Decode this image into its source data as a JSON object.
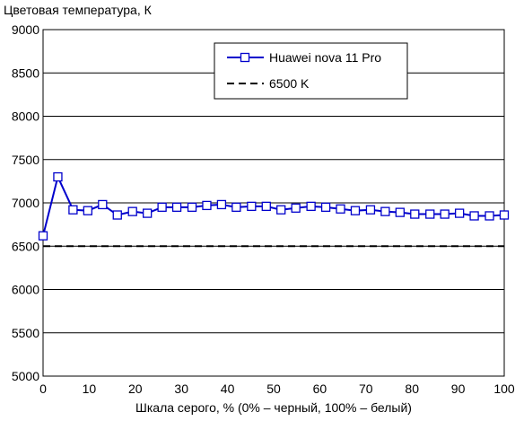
{
  "chart_data": {
    "type": "line",
    "title": "Цветовая температура, К",
    "xlabel": "Шкала серого, % (0% – черный, 100% – белый)",
    "ylabel": "",
    "xlim": [
      0,
      100
    ],
    "ylim": [
      5000,
      9000
    ],
    "x_ticks": [
      "0",
      "10",
      "20",
      "30",
      "40",
      "50",
      "60",
      "70",
      "80",
      "90",
      "100"
    ],
    "y_ticks": [
      "5000",
      "5500",
      "6000",
      "6500",
      "7000",
      "7500",
      "8000",
      "8500",
      "9000"
    ],
    "grid": "horizontal",
    "legend_position": "top-right",
    "series": [
      {
        "name": "Huawei nova 11 Pro",
        "color": "#0000cc",
        "marker": "square-hollow",
        "x": [
          0,
          3.2,
          6.5,
          9.7,
          12.9,
          16.1,
          19.4,
          22.6,
          25.8,
          29.0,
          32.3,
          35.5,
          38.7,
          41.9,
          45.2,
          48.4,
          51.6,
          54.8,
          58.1,
          61.3,
          64.5,
          67.7,
          71.0,
          74.2,
          77.4,
          80.6,
          83.9,
          87.1,
          90.3,
          93.5,
          96.8,
          100
        ],
        "y": [
          6620,
          7300,
          6920,
          6910,
          6980,
          6860,
          6900,
          6880,
          6950,
          6950,
          6950,
          6970,
          6980,
          6950,
          6960,
          6960,
          6920,
          6940,
          6960,
          6950,
          6930,
          6910,
          6920,
          6900,
          6890,
          6870,
          6870,
          6870,
          6880,
          6850,
          6850,
          6860
        ]
      },
      {
        "name": "6500 K",
        "color": "#000000",
        "style": "dashed",
        "x": [
          0,
          100
        ],
        "y": [
          6500,
          6500
        ]
      }
    ]
  }
}
